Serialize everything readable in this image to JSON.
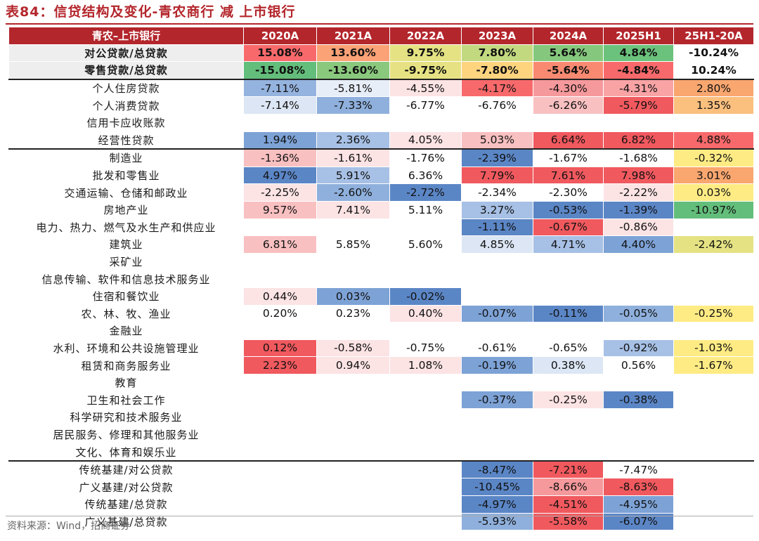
{
  "title": "表84：信贷结构及变化-青农商行 减 上市银行",
  "footer": "资料来源：Wind，招商证券",
  "colors": {
    "header_bg": "#b3262c",
    "blue_dark": "#5b86c6",
    "blue_mid": "#8fb0dc",
    "blue_light": "#dce6f4",
    "red_dark": "#f0595e",
    "red_mid": "#f6999c",
    "red_light": "#fce3e4",
    "green": "#63be7b",
    "yellow_light": "#ffeb84",
    "orange": "#f9a66f"
  },
  "chart_data": {
    "type": "table",
    "columns": [
      "青农–上市银行",
      "2020A",
      "2021A",
      "2022A",
      "2023A",
      "2024A",
      "2025H1",
      "25H1-20A"
    ],
    "rows": [
      {
        "label": "对公贷款/总贷款",
        "values": [
          "15.08%",
          "13.60%",
          "9.75%",
          "7.80%",
          "5.64%",
          "4.84%",
          "-10.24%"
        ],
        "colors": [
          "#f8696b",
          "#fba276",
          "#e4e283",
          "#c2d980",
          "#85c87d",
          "#6bc27c",
          "#ffffff"
        ],
        "bold": true,
        "grey": true
      },
      {
        "label": "零售贷款/总贷款",
        "values": [
          "-15.08%",
          "-13.60%",
          "-9.75%",
          "-7.80%",
          "-5.64%",
          "-4.84%",
          "10.24%"
        ],
        "colors": [
          "#63be7b",
          "#8ac97d",
          "#e6e283",
          "#fed47f",
          "#f98a71",
          "#f8696b",
          "#ffffff"
        ],
        "bold": true,
        "grey": true
      },
      {
        "label": "个人住房贷款",
        "values": [
          "-7.11%",
          "-5.81%",
          "-4.55%",
          "-4.17%",
          "-4.30%",
          "-4.31%",
          "2.80%"
        ],
        "colors": [
          "#95b3df",
          "#e8eef8",
          "#fce3e4",
          "#f8696b",
          "#f6999c",
          "#f9a3a5",
          "#f9a66f"
        ],
        "sep": true
      },
      {
        "label": "个人消费贷款",
        "values": [
          "-7.14%",
          "-7.33%",
          "-6.77%",
          "-6.76%",
          "-6.26%",
          "-5.79%",
          "1.35%"
        ],
        "colors": [
          "#dce6f4",
          "#8fb0dc",
          "#ffffff",
          "#ffffff",
          "#f9c0c1",
          "#f0595e",
          "#fbbf7e"
        ]
      },
      {
        "label": "信用卡应收账款",
        "values": [
          "",
          "",
          "",
          "",
          "",
          "",
          ""
        ],
        "colors": [
          "#ffffff",
          "#ffffff",
          "#ffffff",
          "#ffffff",
          "#ffffff",
          "#ffffff",
          "#ffffff"
        ]
      },
      {
        "label": "经营性贷款",
        "values": [
          "1.94%",
          "2.36%",
          "4.05%",
          "5.03%",
          "6.64%",
          "6.82%",
          "4.88%"
        ],
        "colors": [
          "#7da2d6",
          "#a7c0e5",
          "#fce3e4",
          "#f9c0c1",
          "#f0595e",
          "#f0595e",
          "#f8696b"
        ]
      },
      {
        "label": "制造业",
        "values": [
          "-1.36%",
          "-1.61%",
          "-1.76%",
          "-2.39%",
          "-1.67%",
          "-1.68%",
          "-0.32%"
        ],
        "colors": [
          "#f9c0c1",
          "#fce3e4",
          "#ffffff",
          "#5b86c6",
          "#ffffff",
          "#ffffff",
          "#ffeb84"
        ],
        "sep": true
      },
      {
        "label": "批发和零售业",
        "values": [
          "4.97%",
          "5.91%",
          "6.36%",
          "7.79%",
          "7.61%",
          "7.98%",
          "3.01%"
        ],
        "colors": [
          "#5b86c6",
          "#a7c0e5",
          "#ffffff",
          "#f0595e",
          "#f0595e",
          "#f0595e",
          "#f9a66f"
        ]
      },
      {
        "label": "交通运输、仓储和邮政业",
        "values": [
          "-2.25%",
          "-2.60%",
          "-2.72%",
          "-2.34%",
          "-2.30%",
          "-2.22%",
          "0.03%"
        ],
        "colors": [
          "#fce3e4",
          "#8fb0dc",
          "#5b86c6",
          "#ffffff",
          "#ffffff",
          "#fce3e4",
          "#ffeb84"
        ]
      },
      {
        "label": "房地产业",
        "values": [
          "9.57%",
          "7.41%",
          "5.11%",
          "3.27%",
          "-0.53%",
          "-1.39%",
          "-10.97%"
        ],
        "colors": [
          "#f9c0c1",
          "#fce3e4",
          "#ffffff",
          "#a7c0e5",
          "#5b86c6",
          "#5b86c6",
          "#63be7b"
        ]
      },
      {
        "label": "电力、热力、燃气及水生产和供应业",
        "values": [
          "",
          "",
          "",
          "-1.11%",
          "-0.67%",
          "-0.86%",
          ""
        ],
        "colors": [
          "#ffffff",
          "#ffffff",
          "#ffffff",
          "#5b86c6",
          "#f0595e",
          "#fce3e4",
          "#ffffff"
        ]
      },
      {
        "label": "建筑业",
        "values": [
          "6.81%",
          "5.85%",
          "5.60%",
          "4.85%",
          "4.71%",
          "4.40%",
          "-2.42%"
        ],
        "colors": [
          "#f9c0c1",
          "#ffffff",
          "#ffffff",
          "#dce6f4",
          "#a7c0e5",
          "#7da2d6",
          "#e4e283"
        ]
      },
      {
        "label": "采矿业",
        "values": [
          "",
          "",
          "",
          "",
          "",
          "",
          ""
        ],
        "colors": [
          "#ffffff",
          "#ffffff",
          "#ffffff",
          "#ffffff",
          "#ffffff",
          "#ffffff",
          "#ffffff"
        ]
      },
      {
        "label": "信息传输、软件和信息技术服务业",
        "values": [
          "",
          "",
          "",
          "",
          "",
          "",
          ""
        ],
        "colors": [
          "#ffffff",
          "#ffffff",
          "#ffffff",
          "#ffffff",
          "#ffffff",
          "#ffffff",
          "#ffffff"
        ]
      },
      {
        "label": "住宿和餐饮业",
        "values": [
          "0.44%",
          "0.03%",
          "-0.02%",
          "",
          "",
          "",
          ""
        ],
        "colors": [
          "#fce3e4",
          "#7da2d6",
          "#5b86c6",
          "#ffffff",
          "#ffffff",
          "#ffffff",
          "#ffffff"
        ]
      },
      {
        "label": "农、林、牧、渔业",
        "values": [
          "0.20%",
          "0.23%",
          "0.40%",
          "-0.07%",
          "-0.11%",
          "-0.05%",
          "-0.25%"
        ],
        "colors": [
          "#ffffff",
          "#ffffff",
          "#fce3e4",
          "#7da2d6",
          "#5b86c6",
          "#8fb0dc",
          "#ffeb84"
        ]
      },
      {
        "label": "金融业",
        "values": [
          "",
          "",
          "",
          "",
          "",
          "",
          ""
        ],
        "colors": [
          "#ffffff",
          "#ffffff",
          "#ffffff",
          "#ffffff",
          "#ffffff",
          "#ffffff",
          "#ffffff"
        ]
      },
      {
        "label": "水利、环境和公共设施管理业",
        "values": [
          "0.12%",
          "-0.58%",
          "-0.75%",
          "-0.61%",
          "-0.65%",
          "-0.92%",
          "-1.03%"
        ],
        "colors": [
          "#f0595e",
          "#fce3e4",
          "#ffffff",
          "#ffffff",
          "#ffffff",
          "#a7c0e5",
          "#ffeb84"
        ]
      },
      {
        "label": "租赁和商务服务业",
        "values": [
          "2.23%",
          "0.94%",
          "1.08%",
          "-0.19%",
          "0.38%",
          "0.56%",
          "-1.67%"
        ],
        "colors": [
          "#f0595e",
          "#fce3e4",
          "#fce3e4",
          "#7da2d6",
          "#dce6f4",
          "#ffffff",
          "#ffeb84"
        ]
      },
      {
        "label": "教育",
        "values": [
          "",
          "",
          "",
          "",
          "",
          "",
          ""
        ],
        "colors": [
          "#ffffff",
          "#ffffff",
          "#ffffff",
          "#ffffff",
          "#ffffff",
          "#ffffff",
          "#ffffff"
        ]
      },
      {
        "label": "卫生和社会工作",
        "values": [
          "",
          "",
          "",
          "-0.37%",
          "-0.25%",
          "-0.38%",
          ""
        ],
        "colors": [
          "#ffffff",
          "#ffffff",
          "#ffffff",
          "#7da2d6",
          "#fce3e4",
          "#5b86c6",
          "#ffffff"
        ]
      },
      {
        "label": "科学研究和技术服务业",
        "values": [
          "",
          "",
          "",
          "",
          "",
          "",
          ""
        ],
        "colors": [
          "#ffffff",
          "#ffffff",
          "#ffffff",
          "#ffffff",
          "#ffffff",
          "#ffffff",
          "#ffffff"
        ]
      },
      {
        "label": "居民服务、修理和其他服务业",
        "values": [
          "",
          "",
          "",
          "",
          "",
          "",
          ""
        ],
        "colors": [
          "#ffffff",
          "#ffffff",
          "#ffffff",
          "#ffffff",
          "#ffffff",
          "#ffffff",
          "#ffffff"
        ]
      },
      {
        "label": "文化、体育和娱乐业",
        "values": [
          "",
          "",
          "",
          "",
          "",
          "",
          ""
        ],
        "colors": [
          "#ffffff",
          "#ffffff",
          "#ffffff",
          "#ffffff",
          "#ffffff",
          "#ffffff",
          "#ffffff"
        ]
      },
      {
        "label": "传统基建/对公贷款",
        "values": [
          "",
          "",
          "",
          "-8.47%",
          "-7.21%",
          "-7.47%",
          ""
        ],
        "colors": [
          "#ffffff",
          "#ffffff",
          "#ffffff",
          "#5b86c6",
          "#f0595e",
          "#ffffff",
          "#ffffff"
        ],
        "sep": true
      },
      {
        "label": "广义基建/对公贷款",
        "values": [
          "",
          "",
          "",
          "-10.45%",
          "-8.66%",
          "-8.63%",
          ""
        ],
        "colors": [
          "#ffffff",
          "#ffffff",
          "#ffffff",
          "#5b86c6",
          "#f6999c",
          "#f0595e",
          "#ffffff"
        ]
      },
      {
        "label": "传统基建/总贷款",
        "values": [
          "",
          "",
          "",
          "-4.97%",
          "-4.51%",
          "-4.95%",
          ""
        ],
        "colors": [
          "#ffffff",
          "#ffffff",
          "#ffffff",
          "#5b86c6",
          "#f0595e",
          "#7da2d6",
          "#ffffff"
        ]
      },
      {
        "label": "广义基建/总贷款",
        "values": [
          "",
          "",
          "",
          "-5.93%",
          "-5.58%",
          "-6.07%",
          ""
        ],
        "colors": [
          "#ffffff",
          "#ffffff",
          "#ffffff",
          "#8fb0dc",
          "#f0595e",
          "#5b86c6",
          "#ffffff"
        ]
      }
    ]
  }
}
